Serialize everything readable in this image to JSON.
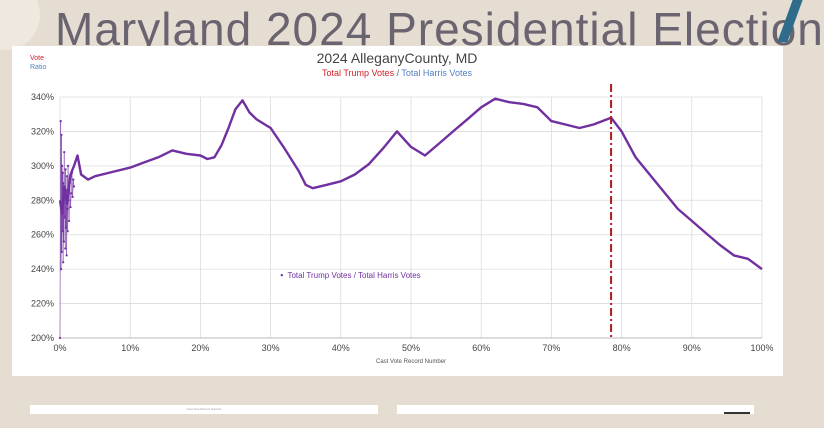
{
  "slide": {
    "background_title": "Maryland 2024 Presidential Election",
    "bottom_left_caption": "Cast Vote Record Number"
  },
  "colors": {
    "background": "#e6ddd2",
    "trump": "#d32026",
    "harris": "#4f7fc4",
    "series": "#7030a0",
    "cutoff_line": "#b01c1c"
  },
  "legend_key": {
    "vote": "Vote",
    "ratio": "Ratio"
  },
  "chart_data": {
    "type": "line",
    "title": "2024 AlleganyCounty, MD",
    "subtitle_trump": "Total Trump Votes",
    "subtitle_separator": " / ",
    "subtitle_harris": "Total Harris Votes",
    "xlabel": "Cast Vote Record Number",
    "ylabel": "",
    "xlim": [
      0,
      100
    ],
    "ylim": [
      200,
      340
    ],
    "x_ticks": [
      0,
      10,
      20,
      30,
      40,
      50,
      60,
      70,
      80,
      90,
      100
    ],
    "x_tick_labels": [
      "0%",
      "10%",
      "20%",
      "30%",
      "40%",
      "50%",
      "60%",
      "70%",
      "80%",
      "90%",
      "100%"
    ],
    "y_ticks": [
      200,
      220,
      240,
      260,
      280,
      300,
      320,
      340
    ],
    "y_tick_labels": [
      "200%",
      "220%",
      "240%",
      "260%",
      "280%",
      "300%",
      "320%",
      "340%"
    ],
    "grid": true,
    "legend_position": "center-left",
    "series": [
      {
        "name": "Total Trump Votes / Total Harris Votes",
        "x": [
          0,
          0.3,
          0.6,
          1,
          1.5,
          2,
          2.5,
          3,
          4,
          5,
          6,
          8,
          10,
          12,
          14,
          16,
          18,
          20,
          21,
          22,
          23,
          24,
          25,
          26,
          27,
          28,
          30,
          32,
          34,
          35,
          36,
          38,
          40,
          42,
          44,
          46,
          48,
          50,
          52,
          54,
          56,
          58,
          60,
          62,
          64,
          66,
          68,
          70,
          72,
          74,
          76,
          78.5,
          80,
          82,
          85,
          88,
          90,
          92,
          94,
          96,
          98,
          100
        ],
        "y": [
          280,
          272,
          288,
          278,
          295,
          300,
          306,
          295,
          292,
          294,
          295,
          297,
          299,
          302,
          305,
          309,
          307,
          306,
          304,
          305,
          312,
          322,
          333,
          338,
          331,
          327,
          322,
          310,
          297,
          289,
          287,
          289,
          291,
          295,
          301,
          310,
          320,
          311,
          306,
          313,
          320,
          327,
          334,
          339,
          337,
          336,
          334,
          326,
          324,
          322,
          324,
          328,
          320,
          305,
          290,
          275,
          268,
          261,
          254,
          248,
          246,
          240
        ]
      }
    ],
    "noise_x": [
      0,
      0.1,
      0.15,
      0.2,
      0.25,
      0.3,
      0.35,
      0.4,
      0.45,
      0.5,
      0.55,
      0.6,
      0.65,
      0.7,
      0.75,
      0.8,
      0.85,
      0.9,
      0.95,
      1,
      1.05,
      1.1,
      1.15,
      1.2,
      1.3,
      1.4,
      1.5,
      1.6,
      1.7,
      1.8,
      1.9,
      2.0
    ],
    "noise_y": [
      200,
      326,
      240,
      318,
      250,
      300,
      262,
      296,
      244,
      290,
      256,
      308,
      270,
      284,
      252,
      298,
      264,
      286,
      248,
      294,
      275,
      262,
      300,
      280,
      268,
      290,
      276,
      284,
      296,
      282,
      292,
      288
    ],
    "vertical_line_x": 78.5,
    "legend_text": "Total Trump Votes / Total Harris Votes"
  }
}
